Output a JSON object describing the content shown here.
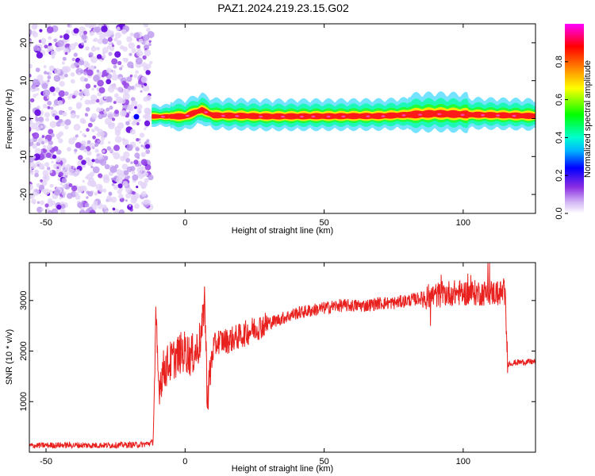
{
  "title": "PAZ1.2024.219.23.15.G02",
  "chart_data": [
    {
      "type": "heatmap",
      "xlabel": "Height of straight line (km)",
      "ylabel": "Frequency (Hz)",
      "xlim": [
        -56,
        126
      ],
      "ylim": [
        -25,
        25
      ],
      "x_ticks": [
        -50,
        0,
        50,
        100
      ],
      "y_ticks": [
        -20,
        -10,
        0,
        10,
        20
      ],
      "colorbar": {
        "label": "Normalized spectral amplitude",
        "range": [
          0,
          1
        ],
        "ticks": [
          "0.0",
          "0.2",
          "0.4",
          "0.6",
          "0.8"
        ],
        "tick_values": [
          0.0,
          0.2,
          0.4,
          0.6,
          0.8
        ],
        "colors": [
          "#ffffff",
          "#c9a8f0",
          "#8a2be2",
          "#0000ff",
          "#00c8ff",
          "#00ffb0",
          "#00ff00",
          "#ffff00",
          "#ff8c00",
          "#ff0000",
          "#ff00ff"
        ]
      },
      "noise_region_km": [
        -56,
        -13
      ],
      "signal_line": [
        {
          "x": -12,
          "f": 0.5
        },
        {
          "x": 0,
          "f": 0.5
        },
        {
          "x": 6,
          "f": 2.2
        },
        {
          "x": 10,
          "f": 0.8
        },
        {
          "x": 30,
          "f": 0.5
        },
        {
          "x": 70,
          "f": 0.6
        },
        {
          "x": 90,
          "f": 1.2
        },
        {
          "x": 100,
          "f": 1.0
        },
        {
          "x": 126,
          "f": 0.6
        }
      ]
    },
    {
      "type": "line",
      "xlabel": "Height of straight line (km)",
      "ylabel": "SNR (10 * v/v)",
      "xlim": [
        -56,
        126
      ],
      "ylim": [
        0,
        3750
      ],
      "x_ticks": [
        -50,
        0,
        50,
        100
      ],
      "y_ticks": [
        1000,
        2000,
        3000
      ],
      "color": "#e8201e",
      "series": [
        {
          "points": [
            [
              -56,
              130
            ],
            [
              -45,
              140
            ],
            [
              -35,
              135
            ],
            [
              -25,
              140
            ],
            [
              -15,
              150
            ],
            [
              -11.5,
              200
            ],
            [
              -10.5,
              2550
            ],
            [
              -9.5,
              1300
            ],
            [
              -8,
              1600
            ],
            [
              -6,
              1750
            ],
            [
              -4,
              1850
            ],
            [
              -2,
              1950
            ],
            [
              0,
              2000
            ],
            [
              2,
              1900
            ],
            [
              4,
              2000
            ],
            [
              6,
              2300
            ],
            [
              7,
              3100
            ],
            [
              8,
              1050
            ],
            [
              10,
              2050
            ],
            [
              12,
              2200
            ],
            [
              15,
              2200
            ],
            [
              20,
              2300
            ],
            [
              25,
              2450
            ],
            [
              30,
              2550
            ],
            [
              35,
              2650
            ],
            [
              40,
              2750
            ],
            [
              45,
              2800
            ],
            [
              50,
              2850
            ],
            [
              55,
              2900
            ],
            [
              60,
              2900
            ],
            [
              65,
              2900
            ],
            [
              70,
              2950
            ],
            [
              75,
              2950
            ],
            [
              80,
              3000
            ],
            [
              85,
              3050
            ],
            [
              90,
              3100
            ],
            [
              95,
              3150
            ],
            [
              100,
              3150
            ],
            [
              105,
              3150
            ],
            [
              110,
              3150
            ],
            [
              115,
              3150
            ],
            [
              116,
              1750
            ],
            [
              120,
              1780
            ],
            [
              126,
              1790
            ]
          ]
        }
      ]
    }
  ]
}
